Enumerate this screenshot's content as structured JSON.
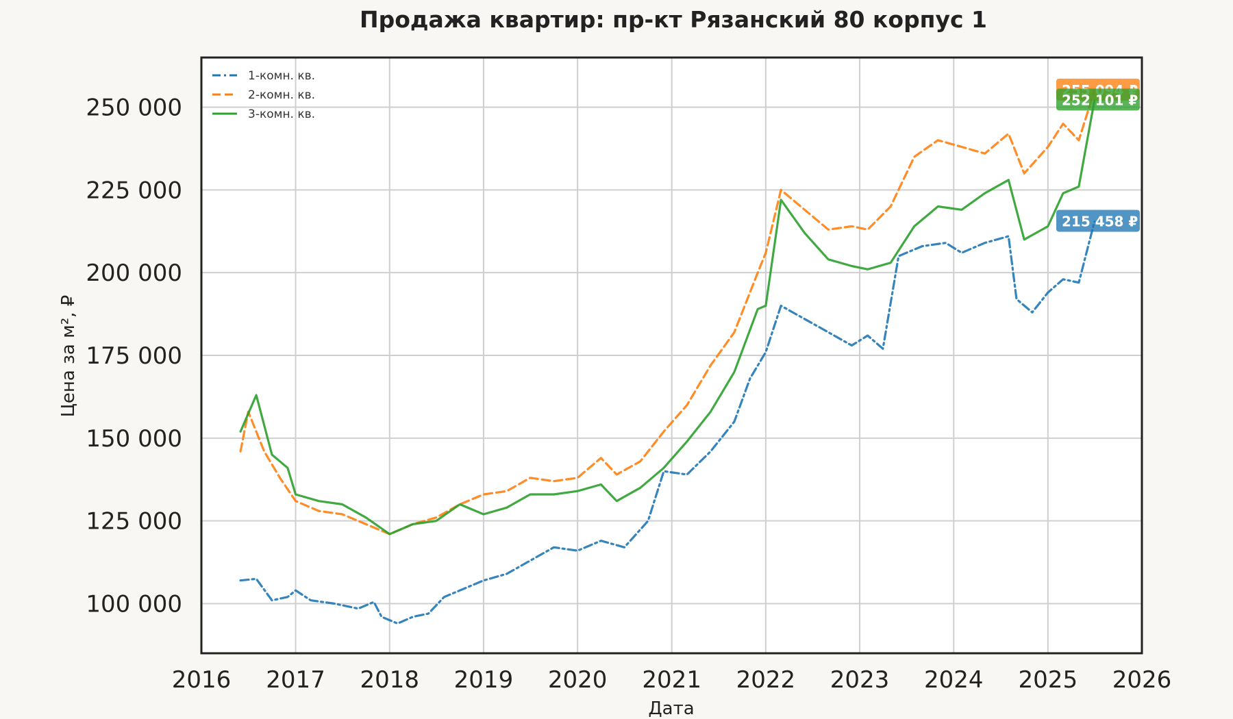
{
  "chart_data": {
    "type": "line",
    "title": "Продажа квартир: пр-кт Рязанский 80 корпус 1",
    "xlabel": "Дата",
    "ylabel": "Цена за м², ₽",
    "xlim": [
      "2016-01-01",
      "2026-01-01"
    ],
    "ylim": [
      85000,
      265000
    ],
    "x_ticks": [
      "2016",
      "2017",
      "2018",
      "2019",
      "2020",
      "2021",
      "2022",
      "2023",
      "2024",
      "2025",
      "2026"
    ],
    "y_ticks": [
      {
        "value": 100000,
        "label": "100 000"
      },
      {
        "value": 125000,
        "label": "125 000"
      },
      {
        "value": 150000,
        "label": "150 000"
      },
      {
        "value": 175000,
        "label": "175 000"
      },
      {
        "value": 200000,
        "label": "200 000"
      },
      {
        "value": 225000,
        "label": "225 000"
      },
      {
        "value": 250000,
        "label": "250 000"
      }
    ],
    "grid": true,
    "legend_position": "top-left",
    "series": [
      {
        "name": "1-комн. кв.",
        "color": "#1f77b4",
        "dash": "dash-dot",
        "end_label": "215 458 ₽",
        "points": [
          [
            "2016-06-01",
            107000
          ],
          [
            "2016-08-01",
            107500
          ],
          [
            "2016-10-01",
            101000
          ],
          [
            "2016-12-01",
            102000
          ],
          [
            "2017-01-01",
            104000
          ],
          [
            "2017-03-01",
            101000
          ],
          [
            "2017-06-01",
            100000
          ],
          [
            "2017-09-01",
            98500
          ],
          [
            "2017-11-01",
            100500
          ],
          [
            "2017-12-01",
            96000
          ],
          [
            "2018-02-01",
            94000
          ],
          [
            "2018-04-01",
            96000
          ],
          [
            "2018-06-01",
            97000
          ],
          [
            "2018-08-01",
            102000
          ],
          [
            "2018-10-01",
            104000
          ],
          [
            "2019-01-01",
            107000
          ],
          [
            "2019-04-01",
            109000
          ],
          [
            "2019-07-01",
            113000
          ],
          [
            "2019-10-01",
            117000
          ],
          [
            "2020-01-01",
            116000
          ],
          [
            "2020-04-01",
            119000
          ],
          [
            "2020-07-01",
            117000
          ],
          [
            "2020-10-01",
            125000
          ],
          [
            "2020-12-01",
            140000
          ],
          [
            "2021-03-01",
            139000
          ],
          [
            "2021-06-01",
            146000
          ],
          [
            "2021-09-01",
            155000
          ],
          [
            "2021-11-01",
            168000
          ],
          [
            "2022-01-01",
            176000
          ],
          [
            "2022-03-01",
            190000
          ],
          [
            "2022-06-01",
            186000
          ],
          [
            "2022-09-01",
            182000
          ],
          [
            "2022-12-01",
            178000
          ],
          [
            "2023-02-01",
            181000
          ],
          [
            "2023-04-01",
            177000
          ],
          [
            "2023-06-01",
            205000
          ],
          [
            "2023-09-01",
            208000
          ],
          [
            "2023-12-01",
            209000
          ],
          [
            "2024-02-01",
            206000
          ],
          [
            "2024-05-01",
            209000
          ],
          [
            "2024-08-01",
            211000
          ],
          [
            "2024-09-01",
            192000
          ],
          [
            "2024-11-01",
            188000
          ],
          [
            "2025-01-01",
            194000
          ],
          [
            "2025-03-01",
            198000
          ],
          [
            "2025-05-01",
            197000
          ],
          [
            "2025-07-01",
            215458
          ]
        ]
      },
      {
        "name": "2-комн. кв.",
        "color": "#ff7f0e",
        "dash": "dashed",
        "end_label": "255 094 ₽",
        "points": [
          [
            "2016-06-01",
            146000
          ],
          [
            "2016-07-01",
            158000
          ],
          [
            "2016-09-01",
            146000
          ],
          [
            "2016-11-01",
            138000
          ],
          [
            "2017-01-01",
            131000
          ],
          [
            "2017-04-01",
            128000
          ],
          [
            "2017-07-01",
            127000
          ],
          [
            "2017-10-01",
            124000
          ],
          [
            "2018-01-01",
            121000
          ],
          [
            "2018-04-01",
            124000
          ],
          [
            "2018-07-01",
            126000
          ],
          [
            "2018-10-01",
            130000
          ],
          [
            "2019-01-01",
            133000
          ],
          [
            "2019-04-01",
            134000
          ],
          [
            "2019-07-01",
            138000
          ],
          [
            "2019-10-01",
            137000
          ],
          [
            "2020-01-01",
            138000
          ],
          [
            "2020-04-01",
            144000
          ],
          [
            "2020-06-01",
            139000
          ],
          [
            "2020-09-01",
            143000
          ],
          [
            "2020-12-01",
            152000
          ],
          [
            "2021-03-01",
            160000
          ],
          [
            "2021-06-01",
            172000
          ],
          [
            "2021-09-01",
            182000
          ],
          [
            "2021-12-01",
            200000
          ],
          [
            "2022-01-01",
            206000
          ],
          [
            "2022-03-01",
            225000
          ],
          [
            "2022-06-01",
            219000
          ],
          [
            "2022-09-01",
            213000
          ],
          [
            "2022-12-01",
            214000
          ],
          [
            "2023-02-01",
            213000
          ],
          [
            "2023-05-01",
            220000
          ],
          [
            "2023-08-01",
            235000
          ],
          [
            "2023-11-01",
            240000
          ],
          [
            "2024-02-01",
            238000
          ],
          [
            "2024-05-01",
            236000
          ],
          [
            "2024-08-01",
            242000
          ],
          [
            "2024-10-01",
            230000
          ],
          [
            "2025-01-01",
            238000
          ],
          [
            "2025-03-01",
            245000
          ],
          [
            "2025-05-01",
            240000
          ],
          [
            "2025-07-01",
            255094
          ]
        ]
      },
      {
        "name": "3-комн. кв.",
        "color": "#2ca02c",
        "dash": "solid",
        "end_label": "252 101 ₽",
        "points": [
          [
            "2016-06-01",
            152000
          ],
          [
            "2016-08-01",
            163000
          ],
          [
            "2016-10-01",
            145000
          ],
          [
            "2016-12-01",
            141000
          ],
          [
            "2017-01-01",
            133000
          ],
          [
            "2017-04-01",
            131000
          ],
          [
            "2017-07-01",
            130000
          ],
          [
            "2017-10-01",
            126000
          ],
          [
            "2018-01-01",
            121000
          ],
          [
            "2018-04-01",
            124000
          ],
          [
            "2018-07-01",
            125000
          ],
          [
            "2018-10-01",
            130000
          ],
          [
            "2019-01-01",
            127000
          ],
          [
            "2019-04-01",
            129000
          ],
          [
            "2019-07-01",
            133000
          ],
          [
            "2019-10-01",
            133000
          ],
          [
            "2020-01-01",
            134000
          ],
          [
            "2020-04-01",
            136000
          ],
          [
            "2020-06-01",
            131000
          ],
          [
            "2020-09-01",
            135000
          ],
          [
            "2020-12-01",
            141000
          ],
          [
            "2021-03-01",
            149000
          ],
          [
            "2021-06-01",
            158000
          ],
          [
            "2021-09-01",
            170000
          ],
          [
            "2021-12-01",
            189000
          ],
          [
            "2022-01-01",
            190000
          ],
          [
            "2022-03-01",
            222000
          ],
          [
            "2022-06-01",
            212000
          ],
          [
            "2022-09-01",
            204000
          ],
          [
            "2022-12-01",
            202000
          ],
          [
            "2023-02-01",
            201000
          ],
          [
            "2023-05-01",
            203000
          ],
          [
            "2023-08-01",
            214000
          ],
          [
            "2023-11-01",
            220000
          ],
          [
            "2024-02-01",
            219000
          ],
          [
            "2024-05-01",
            224000
          ],
          [
            "2024-08-01",
            228000
          ],
          [
            "2024-10-01",
            210000
          ],
          [
            "2025-01-01",
            214000
          ],
          [
            "2025-03-01",
            224000
          ],
          [
            "2025-05-01",
            226000
          ],
          [
            "2025-07-01",
            252101
          ]
        ]
      }
    ]
  }
}
